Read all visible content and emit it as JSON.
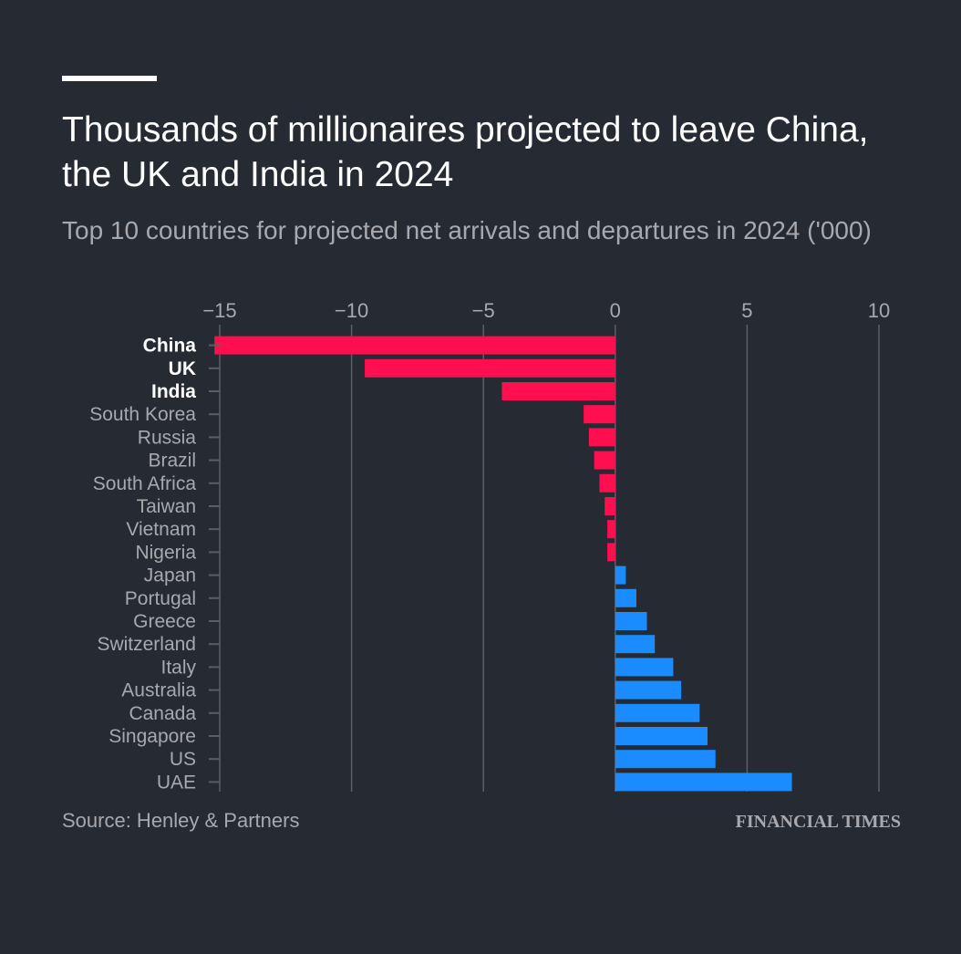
{
  "title": "Thousands of millionaires projected to leave China, the UK and India in 2024",
  "subtitle": "Top 10 countries for projected net arrivals and departures in 2024 ('000)",
  "source": "Source: Henley & Partners",
  "publisher": "FINANCIAL TIMES",
  "colors": {
    "background": "#262a33",
    "departures": "#ff0e50",
    "arrivals": "#1a8cff",
    "text_highlight": "#ffffff",
    "text_muted": "#a7a9ae",
    "grid": "#5a5e66"
  },
  "chart_data": {
    "type": "bar",
    "orientation": "horizontal",
    "xlim": [
      -15,
      10
    ],
    "xticks": [
      -15,
      -10,
      -5,
      0,
      5,
      10
    ],
    "grid": true,
    "categories": [
      "China",
      "UK",
      "India",
      "South Korea",
      "Russia",
      "Brazil",
      "South Africa",
      "Taiwan",
      "Vietnam",
      "Nigeria",
      "Japan",
      "Portugal",
      "Greece",
      "Switzerland",
      "Italy",
      "Australia",
      "Canada",
      "Singapore",
      "US",
      "UAE"
    ],
    "values": [
      -15.2,
      -9.5,
      -4.3,
      -1.2,
      -1.0,
      -0.8,
      -0.6,
      -0.4,
      -0.3,
      -0.3,
      0.4,
      0.8,
      1.2,
      1.5,
      2.2,
      2.5,
      3.2,
      3.5,
      3.8,
      6.7
    ],
    "highlighted": [
      "China",
      "UK",
      "India"
    ]
  }
}
